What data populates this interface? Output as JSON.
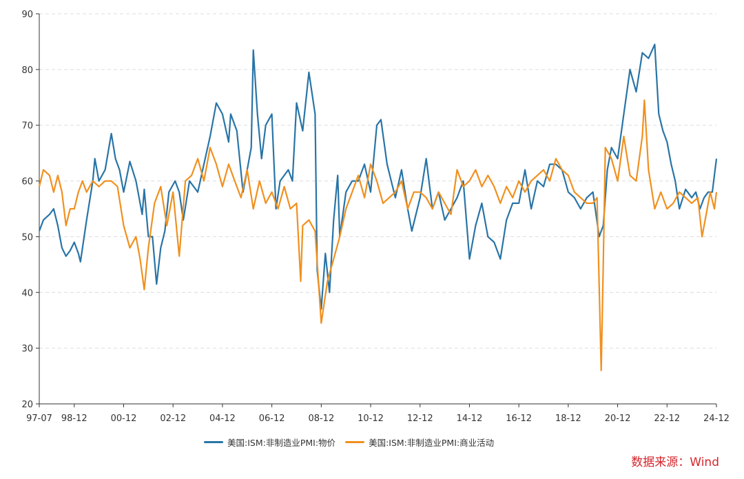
{
  "chart_data": {
    "type": "line",
    "title": "",
    "xlabel": "",
    "ylabel": "",
    "ylim": [
      20,
      90
    ],
    "yticks": [
      20,
      30,
      40,
      50,
      60,
      70,
      80,
      90
    ],
    "x_start": "1997-07",
    "x_end": "2024-12",
    "xtick_labels": [
      "97-07",
      "98-12",
      "00-12",
      "02-12",
      "04-12",
      "06-12",
      "08-12",
      "10-12",
      "12-12",
      "14-12",
      "16-12",
      "18-12",
      "20-12",
      "22-12",
      "24-12"
    ],
    "grid": "horizontal dashed",
    "legend_position": "bottom",
    "series": [
      {
        "name": "美国:ISM:非制造业PMI:物价",
        "color": "#2874a6",
        "points": [
          [
            "1997-07",
            51
          ],
          [
            "1997-09",
            53
          ],
          [
            "1997-12",
            54
          ],
          [
            "1998-02",
            55
          ],
          [
            "1998-04",
            52
          ],
          [
            "1998-06",
            48
          ],
          [
            "1998-08",
            46.5
          ],
          [
            "1998-10",
            47.5
          ],
          [
            "1998-12",
            49
          ],
          [
            "1999-02",
            47
          ],
          [
            "1999-03",
            45.5
          ],
          [
            "1999-06",
            53
          ],
          [
            "1999-09",
            60
          ],
          [
            "1999-10",
            64
          ],
          [
            "1999-12",
            60
          ],
          [
            "2000-03",
            62
          ],
          [
            "2000-06",
            68.5
          ],
          [
            "2000-08",
            64
          ],
          [
            "2000-10",
            62
          ],
          [
            "2000-12",
            58
          ],
          [
            "2001-03",
            63.5
          ],
          [
            "2001-06",
            60
          ],
          [
            "2001-09",
            54
          ],
          [
            "2001-10",
            58.5
          ],
          [
            "2001-12",
            50
          ],
          [
            "2002-02",
            50
          ],
          [
            "2002-04",
            41.5
          ],
          [
            "2002-06",
            48
          ],
          [
            "2002-08",
            51
          ],
          [
            "2002-10",
            58
          ],
          [
            "2003-01",
            60
          ],
          [
            "2003-03",
            58
          ],
          [
            "2003-05",
            53
          ],
          [
            "2003-08",
            60
          ],
          [
            "2003-12",
            58
          ],
          [
            "2004-03",
            63
          ],
          [
            "2004-06",
            68
          ],
          [
            "2004-09",
            74
          ],
          [
            "2004-12",
            72
          ],
          [
            "2005-03",
            67
          ],
          [
            "2005-04",
            72
          ],
          [
            "2005-07",
            69
          ],
          [
            "2005-10",
            58
          ],
          [
            "2005-12",
            62
          ],
          [
            "2006-02",
            66
          ],
          [
            "2006-03",
            83.5
          ],
          [
            "2006-05",
            72
          ],
          [
            "2006-07",
            64
          ],
          [
            "2006-09",
            70
          ],
          [
            "2006-12",
            72
          ],
          [
            "2007-02",
            55
          ],
          [
            "2007-04",
            60
          ],
          [
            "2007-08",
            62
          ],
          [
            "2007-10",
            60
          ],
          [
            "2007-12",
            74
          ],
          [
            "2008-03",
            69
          ],
          [
            "2008-06",
            79.5
          ],
          [
            "2008-09",
            72
          ],
          [
            "2008-10",
            44
          ],
          [
            "2008-12",
            37
          ],
          [
            "2009-02",
            47
          ],
          [
            "2009-04",
            40
          ],
          [
            "2009-06",
            53
          ],
          [
            "2009-08",
            61
          ],
          [
            "2009-09",
            50
          ],
          [
            "2009-12",
            58
          ],
          [
            "2010-03",
            60
          ],
          [
            "2010-06",
            60
          ],
          [
            "2010-09",
            63
          ],
          [
            "2010-12",
            58
          ],
          [
            "2011-03",
            70
          ],
          [
            "2011-05",
            71
          ],
          [
            "2011-08",
            63
          ],
          [
            "2011-10",
            60
          ],
          [
            "2011-12",
            57
          ],
          [
            "2012-03",
            62
          ],
          [
            "2012-06",
            55
          ],
          [
            "2012-08",
            51
          ],
          [
            "2012-12",
            57
          ],
          [
            "2013-03",
            64
          ],
          [
            "2013-06",
            55
          ],
          [
            "2013-09",
            58
          ],
          [
            "2013-12",
            53
          ],
          [
            "2014-03",
            55
          ],
          [
            "2014-06",
            57
          ],
          [
            "2014-09",
            60
          ],
          [
            "2014-12",
            46
          ],
          [
            "2015-03",
            52
          ],
          [
            "2015-06",
            56
          ],
          [
            "2015-09",
            50
          ],
          [
            "2015-12",
            49
          ],
          [
            "2016-03",
            46
          ],
          [
            "2016-06",
            53
          ],
          [
            "2016-09",
            56
          ],
          [
            "2016-12",
            56
          ],
          [
            "2017-03",
            62
          ],
          [
            "2017-06",
            55
          ],
          [
            "2017-09",
            60
          ],
          [
            "2017-12",
            59
          ],
          [
            "2018-03",
            63
          ],
          [
            "2018-06",
            63
          ],
          [
            "2018-09",
            62
          ],
          [
            "2018-12",
            58
          ],
          [
            "2019-03",
            57
          ],
          [
            "2019-06",
            55
          ],
          [
            "2019-09",
            57
          ],
          [
            "2019-12",
            58
          ],
          [
            "2020-03",
            50
          ],
          [
            "2020-05",
            52
          ],
          [
            "2020-07",
            62
          ],
          [
            "2020-09",
            66
          ],
          [
            "2020-12",
            64
          ],
          [
            "2021-03",
            72
          ],
          [
            "2021-06",
            80
          ],
          [
            "2021-09",
            76
          ],
          [
            "2021-12",
            83
          ],
          [
            "2022-03",
            82
          ],
          [
            "2022-06",
            84.5
          ],
          [
            "2022-08",
            72
          ],
          [
            "2022-10",
            69
          ],
          [
            "2022-12",
            67
          ],
          [
            "2023-02",
            63
          ],
          [
            "2023-04",
            60
          ],
          [
            "2023-06",
            55
          ],
          [
            "2023-09",
            58.5
          ],
          [
            "2023-12",
            57
          ],
          [
            "2024-02",
            58
          ],
          [
            "2024-04",
            55
          ],
          [
            "2024-06",
            57
          ],
          [
            "2024-08",
            58
          ],
          [
            "2024-10",
            58
          ],
          [
            "2024-12",
            64
          ]
        ]
      },
      {
        "name": "美国:ISM:非制造业PMI:商业活动",
        "color": "#f0901e",
        "points": [
          [
            "1997-07",
            59
          ],
          [
            "1997-09",
            62
          ],
          [
            "1997-12",
            61
          ],
          [
            "1998-02",
            58
          ],
          [
            "1998-04",
            61
          ],
          [
            "1998-06",
            58
          ],
          [
            "1998-08",
            52
          ],
          [
            "1998-10",
            55
          ],
          [
            "1998-12",
            55
          ],
          [
            "1999-02",
            58
          ],
          [
            "1999-04",
            60
          ],
          [
            "1999-06",
            58
          ],
          [
            "1999-09",
            60
          ],
          [
            "1999-12",
            59
          ],
          [
            "2000-03",
            60
          ],
          [
            "2000-06",
            60
          ],
          [
            "2000-09",
            59
          ],
          [
            "2000-12",
            52
          ],
          [
            "2001-03",
            48
          ],
          [
            "2001-06",
            50
          ],
          [
            "2001-08",
            46
          ],
          [
            "2001-10",
            40.5
          ],
          [
            "2001-12",
            48
          ],
          [
            "2002-03",
            56
          ],
          [
            "2002-06",
            59
          ],
          [
            "2002-09",
            52
          ],
          [
            "2002-12",
            58
          ],
          [
            "2003-03",
            46.5
          ],
          [
            "2003-06",
            60
          ],
          [
            "2003-09",
            61
          ],
          [
            "2003-12",
            64
          ],
          [
            "2004-03",
            60
          ],
          [
            "2004-06",
            66
          ],
          [
            "2004-09",
            63
          ],
          [
            "2004-12",
            59
          ],
          [
            "2005-03",
            63
          ],
          [
            "2005-06",
            60
          ],
          [
            "2005-09",
            57
          ],
          [
            "2005-12",
            62
          ],
          [
            "2006-03",
            55
          ],
          [
            "2006-06",
            60
          ],
          [
            "2006-09",
            56
          ],
          [
            "2006-12",
            58
          ],
          [
            "2007-03",
            55
          ],
          [
            "2007-06",
            59
          ],
          [
            "2007-09",
            55
          ],
          [
            "2007-12",
            56
          ],
          [
            "2008-02",
            42
          ],
          [
            "2008-03",
            52
          ],
          [
            "2008-06",
            53
          ],
          [
            "2008-09",
            51
          ],
          [
            "2008-12",
            34.5
          ],
          [
            "2009-03",
            42
          ],
          [
            "2009-06",
            46
          ],
          [
            "2009-09",
            50
          ],
          [
            "2009-12",
            55
          ],
          [
            "2010-03",
            58
          ],
          [
            "2010-06",
            61
          ],
          [
            "2010-09",
            57
          ],
          [
            "2010-12",
            63
          ],
          [
            "2011-03",
            60
          ],
          [
            "2011-06",
            56
          ],
          [
            "2011-09",
            57
          ],
          [
            "2011-12",
            58
          ],
          [
            "2012-03",
            60
          ],
          [
            "2012-06",
            55
          ],
          [
            "2012-09",
            58
          ],
          [
            "2012-12",
            58
          ],
          [
            "2013-03",
            57
          ],
          [
            "2013-06",
            55
          ],
          [
            "2013-09",
            58
          ],
          [
            "2013-12",
            56
          ],
          [
            "2014-03",
            54
          ],
          [
            "2014-06",
            62
          ],
          [
            "2014-09",
            59
          ],
          [
            "2014-12",
            60
          ],
          [
            "2015-03",
            62
          ],
          [
            "2015-06",
            59
          ],
          [
            "2015-09",
            61
          ],
          [
            "2015-12",
            59
          ],
          [
            "2016-03",
            56
          ],
          [
            "2016-06",
            59
          ],
          [
            "2016-09",
            57
          ],
          [
            "2016-12",
            60
          ],
          [
            "2017-03",
            58
          ],
          [
            "2017-06",
            60
          ],
          [
            "2017-09",
            61
          ],
          [
            "2017-12",
            62
          ],
          [
            "2018-03",
            60
          ],
          [
            "2018-06",
            64
          ],
          [
            "2018-09",
            62
          ],
          [
            "2018-12",
            61
          ],
          [
            "2019-03",
            58
          ],
          [
            "2019-06",
            57
          ],
          [
            "2019-09",
            56
          ],
          [
            "2019-12",
            56
          ],
          [
            "2020-02",
            57
          ],
          [
            "2020-04",
            26
          ],
          [
            "2020-05",
            45
          ],
          [
            "2020-06",
            66
          ],
          [
            "2020-09",
            64
          ],
          [
            "2020-12",
            60
          ],
          [
            "2021-03",
            68
          ],
          [
            "2021-06",
            61
          ],
          [
            "2021-09",
            60
          ],
          [
            "2021-12",
            68
          ],
          [
            "2022-01",
            74.5
          ],
          [
            "2022-03",
            62
          ],
          [
            "2022-06",
            55
          ],
          [
            "2022-09",
            58
          ],
          [
            "2022-12",
            55
          ],
          [
            "2023-03",
            56
          ],
          [
            "2023-06",
            58
          ],
          [
            "2023-09",
            57
          ],
          [
            "2023-12",
            56
          ],
          [
            "2024-03",
            57
          ],
          [
            "2024-05",
            50
          ],
          [
            "2024-07",
            54
          ],
          [
            "2024-09",
            58
          ],
          [
            "2024-11",
            55
          ],
          [
            "2024-12",
            58
          ]
        ]
      }
    ]
  },
  "legend": {
    "items": [
      {
        "label": "美国:ISM:非制造业PMI:物价",
        "color": "#2874a6"
      },
      {
        "label": "美国:ISM:非制造业PMI:商业活动",
        "color": "#f0901e"
      }
    ]
  },
  "source_note": "数据来源：Wind"
}
